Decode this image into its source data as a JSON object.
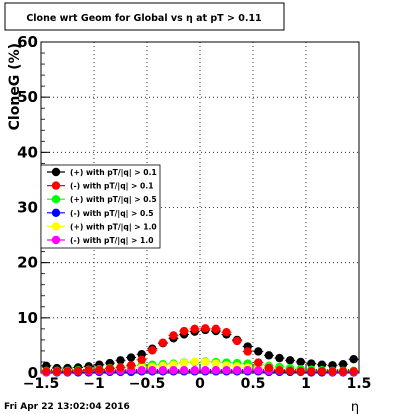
{
  "chart_data": {
    "type": "scatter",
    "title": "Clone wrt Geom for Global vs   η at pT > 0.11",
    "xlabel": "η",
    "ylabel": "CloneG (%)",
    "xlim": [
      -1.5,
      1.5
    ],
    "ylim": [
      0,
      60
    ],
    "x_ticks": [
      -1.5,
      -1,
      -0.5,
      0,
      0.5,
      1,
      1.5
    ],
    "x_tick_labels": [
      "−1.5",
      "−1",
      "−0.5",
      "0",
      "0.5",
      "1",
      "1.5"
    ],
    "y_ticks": [
      0,
      10,
      20,
      30,
      40,
      50,
      60
    ],
    "y_tick_labels": [
      "0",
      "10",
      "20",
      "30",
      "40",
      "50",
      "60"
    ],
    "grid": true,
    "legend_position": "middle-left",
    "timestamp": "Fri Apr 22 13:02:04 2016",
    "x": [
      -1.45,
      -1.35,
      -1.25,
      -1.15,
      -1.05,
      -0.95,
      -0.85,
      -0.75,
      -0.65,
      -0.55,
      -0.45,
      -0.35,
      -0.25,
      -0.15,
      -0.05,
      0.05,
      0.15,
      0.25,
      0.35,
      0.45,
      0.55,
      0.65,
      0.75,
      0.85,
      0.95,
      1.05,
      1.15,
      1.25,
      1.35,
      1.45
    ],
    "series": [
      {
        "name": "(+) with pT/|q| > 0.1",
        "color": "#000000",
        "values": [
          1.3,
          0.9,
          0.9,
          1.0,
          1.2,
          1.5,
          1.8,
          2.3,
          2.8,
          3.4,
          4.4,
          5.4,
          6.3,
          7.0,
          7.5,
          7.8,
          7.6,
          7.0,
          6.0,
          4.8,
          3.9,
          3.2,
          2.7,
          2.3,
          2.0,
          1.7,
          1.5,
          1.4,
          1.6,
          2.5
        ]
      },
      {
        "name": "(-) with pT/|q| > 0.1",
        "color": "#ff0000",
        "values": [
          0.3,
          0.3,
          0.3,
          0.4,
          0.5,
          0.6,
          0.8,
          1.0,
          1.4,
          2.4,
          4.1,
          5.5,
          6.8,
          7.6,
          8.0,
          8.1,
          8.0,
          7.4,
          5.8,
          3.9,
          1.9,
          0.9,
          0.5,
          0.4,
          0.3,
          0.3,
          0.3,
          0.3,
          0.3,
          0.3
        ]
      },
      {
        "name": "(+) with pT/|q| > 0.5",
        "color": "#00ff00",
        "values": [
          0.4,
          0.4,
          0.4,
          0.5,
          0.6,
          0.7,
          0.9,
          1.0,
          1.2,
          1.4,
          1.5,
          1.6,
          1.7,
          1.9,
          2.0,
          2.1,
          2.0,
          1.9,
          1.8,
          1.7,
          1.5,
          1.3,
          1.1,
          0.9,
          0.7,
          0.6,
          0.5,
          0.4,
          0.4,
          0.4
        ]
      },
      {
        "name": "(-) with pT/|q| > 0.5",
        "color": "#0000ff",
        "values": [
          0.1,
          0.1,
          0.1,
          0.1,
          0.1,
          0.2,
          0.2,
          0.2,
          0.2,
          0.3,
          0.3,
          0.3,
          0.3,
          0.3,
          0.3,
          0.3,
          0.3,
          0.3,
          0.3,
          0.3,
          0.3,
          0.2,
          0.2,
          0.2,
          0.2,
          0.1,
          0.1,
          0.1,
          0.1,
          0.1
        ]
      },
      {
        "name": "(+) with pT/|q| > 1.0",
        "color": "#ffff00",
        "values": [
          0.2,
          0.2,
          0.3,
          0.3,
          0.4,
          0.5,
          0.6,
          0.7,
          0.9,
          1.0,
          1.1,
          1.3,
          1.5,
          1.8,
          2.1,
          2.0,
          1.7,
          1.4,
          1.2,
          1.0,
          0.8,
          0.6,
          0.5,
          0.4,
          0.3,
          0.3,
          0.2,
          0.2,
          0.2,
          0.2
        ]
      },
      {
        "name": "(-) with pT/|q| > 1.0",
        "color": "#ff00ff",
        "values": [
          0.1,
          0.2,
          0.2,
          0.3,
          0.3,
          0.4,
          0.4,
          0.4,
          0.5,
          0.5,
          0.5,
          0.5,
          0.5,
          0.5,
          0.5,
          0.5,
          0.5,
          0.5,
          0.5,
          0.5,
          0.5,
          0.4,
          0.4,
          0.4,
          0.3,
          0.3,
          0.3,
          0.2,
          0.2,
          0.2
        ]
      }
    ]
  }
}
